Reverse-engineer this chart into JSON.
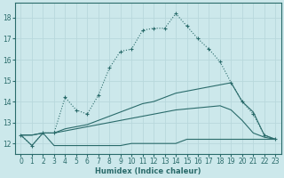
{
  "xlabel": "Humidex (Indice chaleur)",
  "bg_color": "#cce8eb",
  "grid_color": "#b8d8dc",
  "line_color": "#2a6b6b",
  "xlim": [
    -0.5,
    23.5
  ],
  "ylim": [
    11.5,
    18.7
  ],
  "yticks": [
    12,
    13,
    14,
    15,
    16,
    17,
    18
  ],
  "xticks": [
    0,
    1,
    2,
    3,
    4,
    5,
    6,
    7,
    8,
    9,
    10,
    11,
    12,
    13,
    14,
    15,
    16,
    17,
    18,
    19,
    20,
    21,
    22,
    23
  ],
  "s1_x": [
    0,
    1,
    2,
    3,
    4,
    5,
    6,
    7,
    8,
    9,
    10,
    11,
    12,
    13,
    14,
    15,
    16,
    17,
    18,
    19,
    20,
    21,
    22,
    23
  ],
  "s1_y": [
    12.4,
    11.9,
    12.5,
    12.5,
    14.2,
    13.6,
    13.4,
    14.3,
    15.6,
    16.4,
    16.5,
    17.4,
    17.5,
    17.5,
    18.2,
    17.6,
    17.0,
    16.5,
    15.9,
    14.9,
    14.0,
    13.4,
    12.4,
    12.2
  ],
  "s2_x": [
    0,
    1,
    2,
    3,
    4,
    5,
    6,
    7,
    8,
    9,
    10,
    11,
    12,
    13,
    14,
    15,
    16,
    17,
    18,
    19,
    20,
    21,
    22,
    23
  ],
  "s2_y": [
    12.4,
    11.9,
    12.5,
    11.9,
    11.9,
    11.9,
    11.9,
    11.9,
    11.9,
    11.9,
    12.0,
    12.0,
    12.0,
    12.0,
    12.0,
    12.2,
    12.2,
    12.2,
    12.2,
    12.2,
    12.2,
    12.2,
    12.2,
    12.2
  ],
  "s3_x": [
    0,
    1,
    2,
    3,
    4,
    5,
    6,
    7,
    8,
    9,
    10,
    11,
    12,
    13,
    14,
    15,
    16,
    17,
    18,
    19,
    20,
    21,
    22,
    23
  ],
  "s3_y": [
    12.4,
    12.4,
    12.5,
    12.5,
    12.7,
    12.8,
    12.9,
    13.1,
    13.3,
    13.5,
    13.7,
    13.9,
    14.0,
    14.2,
    14.4,
    14.5,
    14.6,
    14.7,
    14.8,
    14.9,
    14.0,
    13.5,
    12.4,
    12.2
  ],
  "s4_x": [
    0,
    1,
    2,
    3,
    4,
    5,
    6,
    7,
    8,
    9,
    10,
    11,
    12,
    13,
    14,
    15,
    16,
    17,
    18,
    19,
    20,
    21,
    22,
    23
  ],
  "s4_y": [
    12.4,
    12.4,
    12.5,
    12.5,
    12.6,
    12.7,
    12.8,
    12.9,
    13.0,
    13.1,
    13.2,
    13.3,
    13.4,
    13.5,
    13.6,
    13.65,
    13.7,
    13.75,
    13.8,
    13.6,
    13.1,
    12.5,
    12.3,
    12.2
  ]
}
